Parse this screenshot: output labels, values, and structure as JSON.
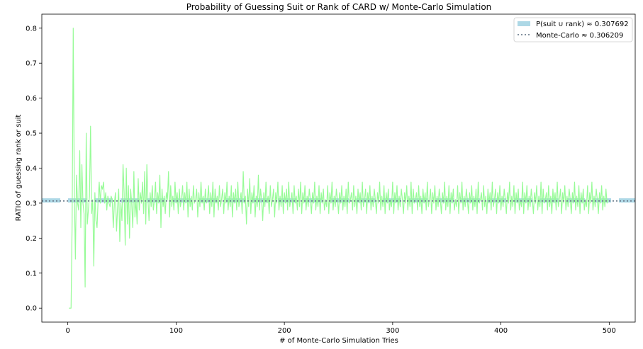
{
  "chart_data": {
    "type": "line",
    "title": "Probability of Guessing Suit or Rank of CARD w/ Monte-Carlo Simulation",
    "xlabel": "# of Monte-Carlo Simulation Tries",
    "ylabel": "RATIO of guessing rank or suit",
    "xlim": [
      -24,
      524
    ],
    "ylim": [
      -0.04,
      0.84
    ],
    "xticks": [
      0,
      100,
      200,
      300,
      400,
      500
    ],
    "yticks": [
      0.0,
      0.1,
      0.2,
      0.3,
      0.4,
      0.5,
      0.6,
      0.7,
      0.8
    ],
    "xtick_labels": [
      "0",
      "100",
      "200",
      "300",
      "400",
      "500"
    ],
    "ytick_labels": [
      "0.0",
      "0.1",
      "0.2",
      "0.3",
      "0.4",
      "0.5",
      "0.6",
      "0.7",
      "0.8"
    ],
    "grid": false,
    "legend_position": "top-right",
    "series": [
      {
        "name": "P(suit ∪ rank) ≈ 0.307692",
        "kind": "hline",
        "value": 0.307692,
        "color": "#add8e6",
        "style": "dashed-thick"
      },
      {
        "name": "Monte-Carlo ≈ 0.306209",
        "kind": "hline",
        "value": 0.306209,
        "color": "#708090",
        "style": "dotted"
      },
      {
        "kind": "line",
        "color": "#98fb98",
        "x_start": 1,
        "x_end": 500,
        "x_step": 1,
        "values": [
          0.0,
          0.0,
          0.0,
          0.25,
          0.8,
          0.33,
          0.14,
          0.38,
          0.3,
          0.28,
          0.45,
          0.23,
          0.41,
          0.3,
          0.27,
          0.06,
          0.5,
          0.24,
          0.28,
          0.32,
          0.52,
          0.27,
          0.31,
          0.12,
          0.33,
          0.25,
          0.23,
          0.31,
          0.36,
          0.3,
          0.35,
          0.34,
          0.36,
          0.3,
          0.33,
          0.28,
          0.32,
          0.3,
          0.29,
          0.32,
          0.31,
          0.23,
          0.3,
          0.33,
          0.22,
          0.29,
          0.34,
          0.19,
          0.3,
          0.25,
          0.41,
          0.33,
          0.18,
          0.4,
          0.24,
          0.35,
          0.2,
          0.34,
          0.3,
          0.23,
          0.39,
          0.26,
          0.31,
          0.24,
          0.37,
          0.28,
          0.33,
          0.3,
          0.36,
          0.27,
          0.39,
          0.24,
          0.41,
          0.31,
          0.25,
          0.33,
          0.29,
          0.35,
          0.28,
          0.31,
          0.36,
          0.27,
          0.33,
          0.3,
          0.38,
          0.23,
          0.34,
          0.29,
          0.32,
          0.27,
          0.33,
          0.31,
          0.39,
          0.26,
          0.35,
          0.29,
          0.32,
          0.28,
          0.36,
          0.3,
          0.33,
          0.27,
          0.34,
          0.29,
          0.31,
          0.35,
          0.28,
          0.33,
          0.3,
          0.36,
          0.26,
          0.34,
          0.29,
          0.32,
          0.28,
          0.35,
          0.3,
          0.31,
          0.34,
          0.26,
          0.33,
          0.29,
          0.36,
          0.3,
          0.32,
          0.28,
          0.34,
          0.3,
          0.31,
          0.35,
          0.27,
          0.33,
          0.29,
          0.36,
          0.26,
          0.34,
          0.3,
          0.32,
          0.28,
          0.35,
          0.29,
          0.31,
          0.34,
          0.27,
          0.33,
          0.3,
          0.36,
          0.28,
          0.32,
          0.29,
          0.35,
          0.26,
          0.33,
          0.3,
          0.34,
          0.28,
          0.36,
          0.29,
          0.31,
          0.33,
          0.27,
          0.39,
          0.3,
          0.32,
          0.24,
          0.34,
          0.29,
          0.37,
          0.27,
          0.33,
          0.3,
          0.35,
          0.26,
          0.32,
          0.29,
          0.38,
          0.28,
          0.34,
          0.31,
          0.25,
          0.33,
          0.29,
          0.36,
          0.3,
          0.32,
          0.27,
          0.35,
          0.29,
          0.31,
          0.34,
          0.26,
          0.33,
          0.3,
          0.36,
          0.28,
          0.32,
          0.29,
          0.35,
          0.27,
          0.33,
          0.3,
          0.34,
          0.28,
          0.36,
          0.29,
          0.31,
          0.33,
          0.27,
          0.35,
          0.3,
          0.32,
          0.28,
          0.34,
          0.29,
          0.36,
          0.27,
          0.33,
          0.3,
          0.35,
          0.28,
          0.32,
          0.29,
          0.34,
          0.31,
          0.27,
          0.33,
          0.3,
          0.36,
          0.28,
          0.32,
          0.29,
          0.35,
          0.27,
          0.33,
          0.3,
          0.34,
          0.28,
          0.31,
          0.29,
          0.35,
          0.27,
          0.33,
          0.3,
          0.36,
          0.28,
          0.32,
          0.29,
          0.34,
          0.31,
          0.27,
          0.33,
          0.3,
          0.35,
          0.28,
          0.32,
          0.29,
          0.34,
          0.27,
          0.36,
          0.3,
          0.31,
          0.33,
          0.28,
          0.35,
          0.29,
          0.32,
          0.27,
          0.34,
          0.3,
          0.33,
          0.28,
          0.36,
          0.29,
          0.31,
          0.34,
          0.27,
          0.33,
          0.3,
          0.35,
          0.28,
          0.32,
          0.29,
          0.34,
          0.31,
          0.27,
          0.33,
          0.3,
          0.36,
          0.28,
          0.32,
          0.29,
          0.35,
          0.27,
          0.33,
          0.3,
          0.34,
          0.28,
          0.31,
          0.29,
          0.36,
          0.27,
          0.33,
          0.3,
          0.35,
          0.28,
          0.32,
          0.29,
          0.34,
          0.31,
          0.27,
          0.33,
          0.3,
          0.35,
          0.28,
          0.32,
          0.29,
          0.36,
          0.27,
          0.34,
          0.3,
          0.31,
          0.33,
          0.28,
          0.35,
          0.29,
          0.32,
          0.27,
          0.34,
          0.3,
          0.33,
          0.28,
          0.36,
          0.29,
          0.31,
          0.34,
          0.27,
          0.33,
          0.3,
          0.35,
          0.28,
          0.32,
          0.29,
          0.34,
          0.31,
          0.27,
          0.33,
          0.3,
          0.36,
          0.28,
          0.32,
          0.29,
          0.35,
          0.27,
          0.33,
          0.3,
          0.34,
          0.28,
          0.31,
          0.29,
          0.35,
          0.27,
          0.33,
          0.3,
          0.36,
          0.28,
          0.32,
          0.29,
          0.34,
          0.31,
          0.27,
          0.33,
          0.3,
          0.35,
          0.28,
          0.32,
          0.29,
          0.34,
          0.27,
          0.36,
          0.3,
          0.31,
          0.33,
          0.28,
          0.35,
          0.29,
          0.32,
          0.27,
          0.34,
          0.3,
          0.33,
          0.28,
          0.36,
          0.29,
          0.31,
          0.34,
          0.27,
          0.33,
          0.3,
          0.35,
          0.28,
          0.32,
          0.29,
          0.34,
          0.31,
          0.27,
          0.33,
          0.3,
          0.36,
          0.28,
          0.32,
          0.29,
          0.35,
          0.27,
          0.33,
          0.3,
          0.34,
          0.28,
          0.31,
          0.29,
          0.36,
          0.27,
          0.33,
          0.3,
          0.35,
          0.28,
          0.32,
          0.29,
          0.34,
          0.31,
          0.27,
          0.33,
          0.3,
          0.35,
          0.28,
          0.32,
          0.29,
          0.36,
          0.27,
          0.34,
          0.3,
          0.31,
          0.33,
          0.28,
          0.35,
          0.29,
          0.32,
          0.27,
          0.34,
          0.3,
          0.33,
          0.28,
          0.36,
          0.29,
          0.31,
          0.34,
          0.27,
          0.33,
          0.3,
          0.35,
          0.28,
          0.32,
          0.29,
          0.34,
          0.31,
          0.27,
          0.33,
          0.3,
          0.36,
          0.28,
          0.32,
          0.29,
          0.35,
          0.27,
          0.33,
          0.3,
          0.34,
          0.28,
          0.31,
          0.29,
          0.35,
          0.27,
          0.33,
          0.3,
          0.36,
          0.28,
          0.32,
          0.29,
          0.34,
          0.31,
          0.27,
          0.33,
          0.3,
          0.35,
          0.28,
          0.32,
          0.29,
          0.34,
          0.3,
          0.31
        ]
      }
    ]
  }
}
